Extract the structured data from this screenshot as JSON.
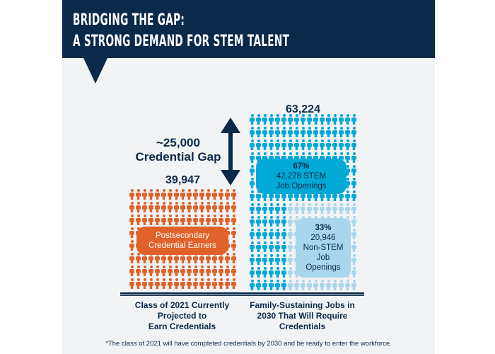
{
  "header": {
    "line1": "BRIDGING THE GAP:",
    "line2": "A STRONG DEMAND FOR STEM TALENT"
  },
  "colors": {
    "navy": "#0b2a4a",
    "orange": "#e0622a",
    "blue": "#00a9d6",
    "light_blue": "#a9d6ec",
    "panel": "#f2f3f5"
  },
  "gap": {
    "value": "~25,000",
    "label": "Credential Gap"
  },
  "chart_data": {
    "type": "pictogram",
    "categories": [
      "Class of 2021 Currently Projected to Earn Credentials",
      "Family-Sustaining Jobs in 2030 That Will Require Credentials"
    ],
    "series": [
      {
        "name": "Postsecondary Credential Earners",
        "values": [
          39947,
          0
        ]
      },
      {
        "name": "STEM Job Openings",
        "values": [
          0,
          42278
        ],
        "percent": 67
      },
      {
        "name": "Non-STEM Job Openings",
        "values": [
          0,
          20946
        ],
        "percent": 33
      }
    ],
    "totals": [
      "39,947",
      "63,224"
    ],
    "gap": 25000
  },
  "left": {
    "total": "39,947",
    "badge_line1": "Postsecondary",
    "badge_line2": "Credential Earners",
    "caption1": "Class of 2021 Currently",
    "caption2": "Projected to",
    "caption3": "Earn Credentials"
  },
  "right": {
    "total": "63,224",
    "stem_pct": "67%",
    "stem_line1": "42,278 STEM",
    "stem_line2": "Job Openings",
    "non_pct": "33%",
    "non_line1": "20,946",
    "non_line2": "Non-STEM",
    "non_line3": "Job",
    "non_line4": "Openings",
    "caption1": "Family-Sustaining Jobs in",
    "caption2": "2030 That Will Require",
    "caption3": "Credentials"
  },
  "footnote": "*The class of 2021 will have completed credentials by 2030 and be ready to enter the workforce."
}
